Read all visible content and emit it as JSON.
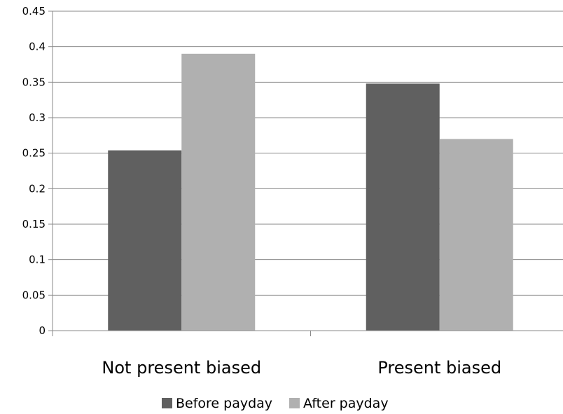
{
  "chart_data": {
    "type": "bar",
    "categories": [
      "Not present biased",
      "Present biased"
    ],
    "series": [
      {
        "name": "Before payday",
        "values": [
          0.254,
          0.348
        ],
        "color": "#606060"
      },
      {
        "name": "After payday",
        "values": [
          0.39,
          0.27
        ],
        "color": "#b0b0b0"
      }
    ],
    "yticks": [
      "0",
      "0.05",
      "0.1",
      "0.15",
      "0.2",
      "0.25",
      "0.3",
      "0.35",
      "0.4",
      "0.45"
    ],
    "ylim": [
      0,
      0.45
    ],
    "grid": true,
    "legend_position": "bottom",
    "title": "",
    "xlabel": "",
    "ylabel": ""
  }
}
